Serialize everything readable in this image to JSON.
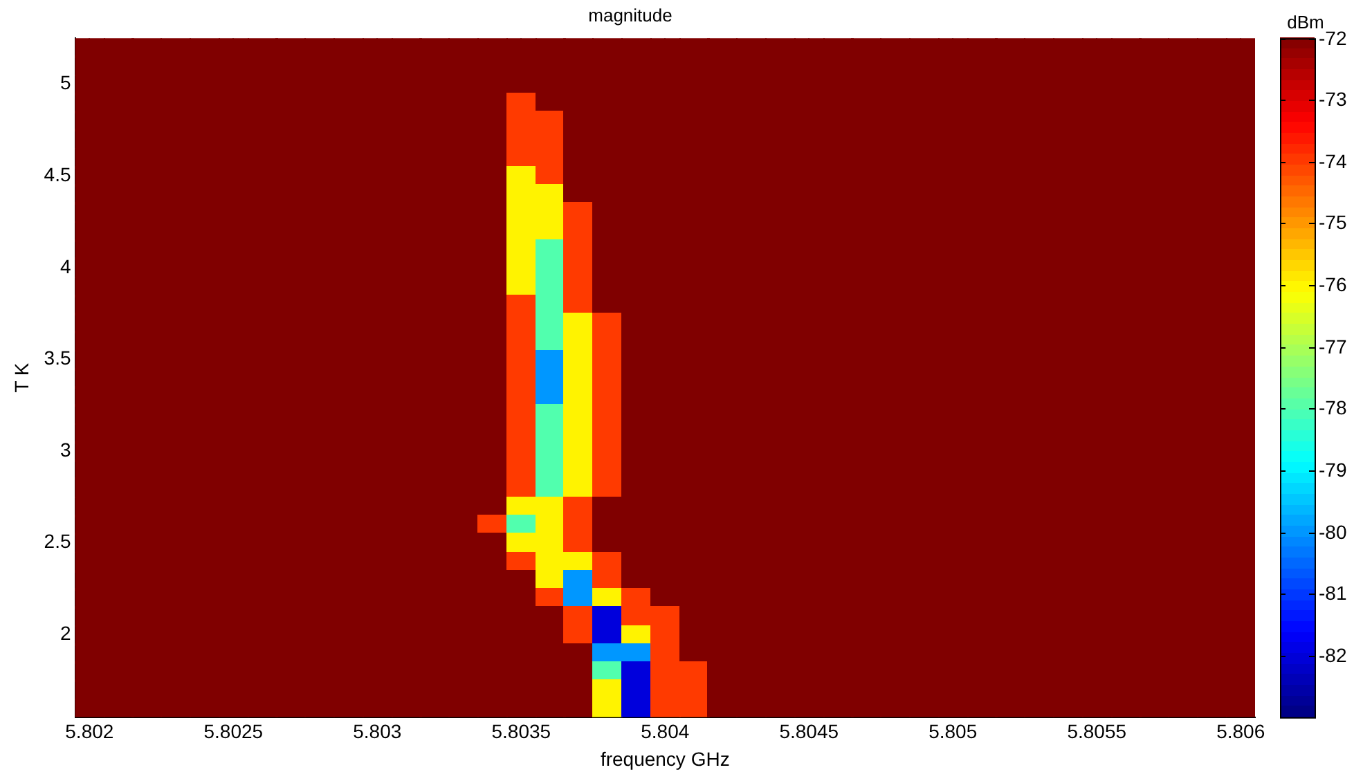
{
  "chart_data": {
    "type": "heatmap",
    "title": "magnitude",
    "xlabel": "frequency GHz",
    "ylabel": "T K",
    "clabel": "dBm",
    "categories": [
      "5.802",
      null,
      null,
      null,
      null,
      "5.8025",
      null,
      null,
      null,
      null,
      "5.803",
      null,
      null,
      null,
      null,
      "5.8035",
      null,
      null,
      null,
      null,
      "5.804",
      null,
      null,
      null,
      null,
      "5.8045",
      null,
      null,
      null,
      null,
      "5.805",
      null,
      null,
      null,
      null,
      "5.8055",
      null,
      null,
      null,
      null,
      "5.806"
    ],
    "y_categories": [
      null,
      null,
      "5",
      null,
      null,
      null,
      null,
      "4.5",
      null,
      null,
      null,
      null,
      "4",
      null,
      null,
      null,
      null,
      "3.5",
      null,
      null,
      null,
      null,
      "3",
      null,
      null,
      null,
      null,
      "2.5",
      null,
      null,
      null,
      null,
      "2",
      null,
      null,
      null,
      null
    ],
    "cells": [
      [
        -72,
        -72,
        -72,
        -72,
        -72,
        -72,
        -72,
        -72,
        -72,
        -72,
        -72,
        -72,
        -72,
        -72,
        -72,
        -72,
        -72,
        -72,
        -72,
        -72,
        -72,
        -72,
        -72,
        -72,
        -72,
        -72,
        -72,
        -72,
        -72,
        -72,
        -72,
        -72,
        -72,
        -72,
        -72,
        -72,
        -72,
        -72,
        -72,
        -72,
        -72
      ],
      [
        -72,
        -72,
        -72,
        -72,
        -72,
        -72,
        -72,
        -72,
        -72,
        -72,
        -72,
        -72,
        -72,
        -72,
        -72,
        -72,
        -72,
        -72,
        -72,
        -72,
        -72,
        -72,
        -72,
        -72,
        -72,
        -72,
        -72,
        -72,
        -72,
        -72,
        -72,
        -72,
        -72,
        -72,
        -72,
        -72,
        -72,
        -72,
        -72,
        -72,
        -72
      ],
      [
        -72,
        -72,
        -72,
        -72,
        -72,
        -72,
        -72,
        -72,
        -72,
        -72,
        -72,
        -72,
        -72,
        -72,
        -72,
        -72,
        -72,
        -72,
        -72,
        -72,
        -72,
        -72,
        -72,
        -72,
        -72,
        -72,
        -72,
        -72,
        -72,
        -72,
        -72,
        -72,
        -72,
        -72,
        -72,
        -72,
        -72,
        -72,
        -72,
        -72,
        -72
      ],
      [
        -72,
        -72,
        -72,
        -72,
        -72,
        -72,
        -72,
        -72,
        -72,
        -72,
        -72,
        -72,
        -72,
        -72,
        -72,
        -74,
        -72,
        -72,
        -72,
        -72,
        -72,
        -72,
        -72,
        -72,
        -72,
        -72,
        -72,
        -72,
        -72,
        -72,
        -72,
        -72,
        -72,
        -72,
        -72,
        -72,
        -72,
        -72,
        -72,
        -72,
        -72
      ],
      [
        -72,
        -72,
        -72,
        -72,
        -72,
        -72,
        -72,
        -72,
        -72,
        -72,
        -72,
        -72,
        -72,
        -72,
        -72,
        -74,
        -74,
        -72,
        -72,
        -72,
        -72,
        -72,
        -72,
        -72,
        -72,
        -72,
        -72,
        -72,
        -72,
        -72,
        -72,
        -72,
        -72,
        -72,
        -72,
        -72,
        -72,
        -72,
        -72,
        -72,
        -72
      ],
      [
        -72,
        -72,
        -72,
        -72,
        -72,
        -72,
        -72,
        -72,
        -72,
        -72,
        -72,
        -72,
        -72,
        -72,
        -72,
        -74,
        -74,
        -72,
        -72,
        -72,
        -72,
        -72,
        -72,
        -72,
        -72,
        -72,
        -72,
        -72,
        -72,
        -72,
        -72,
        -72,
        -72,
        -72,
        -72,
        -72,
        -72,
        -72,
        -72,
        -72,
        -72
      ],
      [
        -72,
        -72,
        -72,
        -72,
        -72,
        -72,
        -72,
        -72,
        -72,
        -72,
        -72,
        -72,
        -72,
        -72,
        -72,
        -74,
        -74,
        -72,
        -72,
        -72,
        -72,
        -72,
        -72,
        -72,
        -72,
        -72,
        -72,
        -72,
        -72,
        -72,
        -72,
        -72,
        -72,
        -72,
        -72,
        -72,
        -72,
        -72,
        -72,
        -72,
        -72
      ],
      [
        -72,
        -72,
        -72,
        -72,
        -72,
        -72,
        -72,
        -72,
        -72,
        -72,
        -72,
        -72,
        -72,
        -72,
        -72,
        -76,
        -74,
        -72,
        -72,
        -72,
        -72,
        -72,
        -72,
        -72,
        -72,
        -72,
        -72,
        -72,
        -72,
        -72,
        -72,
        -72,
        -72,
        -72,
        -72,
        -72,
        -72,
        -72,
        -72,
        -72,
        -72
      ],
      [
        -72,
        -72,
        -72,
        -72,
        -72,
        -72,
        -72,
        -72,
        -72,
        -72,
        -72,
        -72,
        -72,
        -72,
        -72,
        -76,
        -76,
        -72,
        -72,
        -72,
        -72,
        -72,
        -72,
        -72,
        -72,
        -72,
        -72,
        -72,
        -72,
        -72,
        -72,
        -72,
        -72,
        -72,
        -72,
        -72,
        -72,
        -72,
        -72,
        -72,
        -72
      ],
      [
        -72,
        -72,
        -72,
        -72,
        -72,
        -72,
        -72,
        -72,
        -72,
        -72,
        -72,
        -72,
        -72,
        -72,
        -72,
        -76,
        -76,
        -74,
        -72,
        -72,
        -72,
        -72,
        -72,
        -72,
        -72,
        -72,
        -72,
        -72,
        -72,
        -72,
        -72,
        -72,
        -72,
        -72,
        -72,
        -72,
        -72,
        -72,
        -72,
        -72,
        -72
      ],
      [
        -72,
        -72,
        -72,
        -72,
        -72,
        -72,
        -72,
        -72,
        -72,
        -72,
        -72,
        -72,
        -72,
        -72,
        -72,
        -76,
        -76,
        -74,
        -72,
        -72,
        -72,
        -72,
        -72,
        -72,
        -72,
        -72,
        -72,
        -72,
        -72,
        -72,
        -72,
        -72,
        -72,
        -72,
        -72,
        -72,
        -72,
        -72,
        -72,
        -72,
        -72
      ],
      [
        -72,
        -72,
        -72,
        -72,
        -72,
        -72,
        -72,
        -72,
        -72,
        -72,
        -72,
        -72,
        -72,
        -72,
        -72,
        -76,
        -78,
        -74,
        -72,
        -72,
        -72,
        -72,
        -72,
        -72,
        -72,
        -72,
        -72,
        -72,
        -72,
        -72,
        -72,
        -72,
        -72,
        -72,
        -72,
        -72,
        -72,
        -72,
        -72,
        -72,
        -72
      ],
      [
        -72,
        -72,
        -72,
        -72,
        -72,
        -72,
        -72,
        -72,
        -72,
        -72,
        -72,
        -72,
        -72,
        -72,
        -72,
        -76,
        -78,
        -74,
        -72,
        -72,
        -72,
        -72,
        -72,
        -72,
        -72,
        -72,
        -72,
        -72,
        -72,
        -72,
        -72,
        -72,
        -72,
        -72,
        -72,
        -72,
        -72,
        -72,
        -72,
        -72,
        -72
      ],
      [
        -72,
        -72,
        -72,
        -72,
        -72,
        -72,
        -72,
        -72,
        -72,
        -72,
        -72,
        -72,
        -72,
        -72,
        -72,
        -76,
        -78,
        -74,
        -72,
        -72,
        -72,
        -72,
        -72,
        -72,
        -72,
        -72,
        -72,
        -72,
        -72,
        -72,
        -72,
        -72,
        -72,
        -72,
        -72,
        -72,
        -72,
        -72,
        -72,
        -72,
        -72
      ],
      [
        -72,
        -72,
        -72,
        -72,
        -72,
        -72,
        -72,
        -72,
        -72,
        -72,
        -72,
        -72,
        -72,
        -72,
        -72,
        -74,
        -78,
        -74,
        -72,
        -72,
        -72,
        -72,
        -72,
        -72,
        -72,
        -72,
        -72,
        -72,
        -72,
        -72,
        -72,
        -72,
        -72,
        -72,
        -72,
        -72,
        -72,
        -72,
        -72,
        -72,
        -72
      ],
      [
        -72,
        -72,
        -72,
        -72,
        -72,
        -72,
        -72,
        -72,
        -72,
        -72,
        -72,
        -72,
        -72,
        -72,
        -72,
        -74,
        -78,
        -76,
        -74,
        -72,
        -72,
        -72,
        -72,
        -72,
        -72,
        -72,
        -72,
        -72,
        -72,
        -72,
        -72,
        -72,
        -72,
        -72,
        -72,
        -72,
        -72,
        -72,
        -72,
        -72,
        -72
      ],
      [
        -72,
        -72,
        -72,
        -72,
        -72,
        -72,
        -72,
        -72,
        -72,
        -72,
        -72,
        -72,
        -72,
        -72,
        -72,
        -74,
        -78,
        -76,
        -74,
        -72,
        -72,
        -72,
        -72,
        -72,
        -72,
        -72,
        -72,
        -72,
        -72,
        -72,
        -72,
        -72,
        -72,
        -72,
        -72,
        -72,
        -72,
        -72,
        -72,
        -72,
        -72
      ],
      [
        -72,
        -72,
        -72,
        -72,
        -72,
        -72,
        -72,
        -72,
        -72,
        -72,
        -72,
        -72,
        -72,
        -72,
        -72,
        -74,
        -80,
        -76,
        -74,
        -72,
        -72,
        -72,
        -72,
        -72,
        -72,
        -72,
        -72,
        -72,
        -72,
        -72,
        -72,
        -72,
        -72,
        -72,
        -72,
        -72,
        -72,
        -72,
        -72,
        -72,
        -72
      ],
      [
        -72,
        -72,
        -72,
        -72,
        -72,
        -72,
        -72,
        -72,
        -72,
        -72,
        -72,
        -72,
        -72,
        -72,
        -72,
        -74,
        -80,
        -76,
        -74,
        -72,
        -72,
        -72,
        -72,
        -72,
        -72,
        -72,
        -72,
        -72,
        -72,
        -72,
        -72,
        -72,
        -72,
        -72,
        -72,
        -72,
        -72,
        -72,
        -72,
        -72,
        -72
      ],
      [
        -72,
        -72,
        -72,
        -72,
        -72,
        -72,
        -72,
        -72,
        -72,
        -72,
        -72,
        -72,
        -72,
        -72,
        -72,
        -74,
        -80,
        -76,
        -74,
        -72,
        -72,
        -72,
        -72,
        -72,
        -72,
        -72,
        -72,
        -72,
        -72,
        -72,
        -72,
        -72,
        -72,
        -72,
        -72,
        -72,
        -72,
        -72,
        -72,
        -72,
        -72
      ],
      [
        -72,
        -72,
        -72,
        -72,
        -72,
        -72,
        -72,
        -72,
        -72,
        -72,
        -72,
        -72,
        -72,
        -72,
        -72,
        -74,
        -78,
        -76,
        -74,
        -72,
        -72,
        -72,
        -72,
        -72,
        -72,
        -72,
        -72,
        -72,
        -72,
        -72,
        -72,
        -72,
        -72,
        -72,
        -72,
        -72,
        -72,
        -72,
        -72,
        -72,
        -72
      ],
      [
        -72,
        -72,
        -72,
        -72,
        -72,
        -72,
        -72,
        -72,
        -72,
        -72,
        -72,
        -72,
        -72,
        -72,
        -72,
        -74,
        -78,
        -76,
        -74,
        -72,
        -72,
        -72,
        -72,
        -72,
        -72,
        -72,
        -72,
        -72,
        -72,
        -72,
        -72,
        -72,
        -72,
        -72,
        -72,
        -72,
        -72,
        -72,
        -72,
        -72,
        -72
      ],
      [
        -72,
        -72,
        -72,
        -72,
        -72,
        -72,
        -72,
        -72,
        -72,
        -72,
        -72,
        -72,
        -72,
        -72,
        -72,
        -74,
        -78,
        -76,
        -74,
        -72,
        -72,
        -72,
        -72,
        -72,
        -72,
        -72,
        -72,
        -72,
        -72,
        -72,
        -72,
        -72,
        -72,
        -72,
        -72,
        -72,
        -72,
        -72,
        -72,
        -72,
        -72
      ],
      [
        -72,
        -72,
        -72,
        -72,
        -72,
        -72,
        -72,
        -72,
        -72,
        -72,
        -72,
        -72,
        -72,
        -72,
        -72,
        -74,
        -78,
        -76,
        -74,
        -72,
        -72,
        -72,
        -72,
        -72,
        -72,
        -72,
        -72,
        -72,
        -72,
        -72,
        -72,
        -72,
        -72,
        -72,
        -72,
        -72,
        -72,
        -72,
        -72,
        -72,
        -72
      ],
      [
        -72,
        -72,
        -72,
        -72,
        -72,
        -72,
        -72,
        -72,
        -72,
        -72,
        -72,
        -72,
        -72,
        -72,
        -72,
        -74,
        -78,
        -76,
        -74,
        -72,
        -72,
        -72,
        -72,
        -72,
        -72,
        -72,
        -72,
        -72,
        -72,
        -72,
        -72,
        -72,
        -72,
        -72,
        -72,
        -72,
        -72,
        -72,
        -72,
        -72,
        -72
      ],
      [
        -72,
        -72,
        -72,
        -72,
        -72,
        -72,
        -72,
        -72,
        -72,
        -72,
        -72,
        -72,
        -72,
        -72,
        -72,
        -76,
        -76,
        -74,
        -72,
        -72,
        -72,
        -72,
        -72,
        -72,
        -72,
        -72,
        -72,
        -72,
        -72,
        -72,
        -72,
        -72,
        -72,
        -72,
        -72,
        -72,
        -72,
        -72,
        -72,
        -72,
        -72
      ],
      [
        -72,
        -72,
        -72,
        -72,
        -72,
        -72,
        -72,
        -72,
        -72,
        -72,
        -72,
        -72,
        -72,
        -72,
        -74,
        -78,
        -76,
        -74,
        -72,
        -72,
        -72,
        -72,
        -72,
        -72,
        -72,
        -72,
        -72,
        -72,
        -72,
        -72,
        -72,
        -72,
        -72,
        -72,
        -72,
        -72,
        -72,
        -72,
        -72,
        -72,
        -72
      ],
      [
        -72,
        -72,
        -72,
        -72,
        -72,
        -72,
        -72,
        -72,
        -72,
        -72,
        -72,
        -72,
        -72,
        -72,
        -72,
        -76,
        -76,
        -74,
        -72,
        -72,
        -72,
        -72,
        -72,
        -72,
        -72,
        -72,
        -72,
        -72,
        -72,
        -72,
        -72,
        -72,
        -72,
        -72,
        -72,
        -72,
        -72,
        -72,
        -72,
        -72,
        -72
      ],
      [
        -72,
        -72,
        -72,
        -72,
        -72,
        -72,
        -72,
        -72,
        -72,
        -72,
        -72,
        -72,
        -72,
        -72,
        -72,
        -74,
        -76,
        -76,
        -74,
        -72,
        -72,
        -72,
        -72,
        -72,
        -72,
        -72,
        -72,
        -72,
        -72,
        -72,
        -72,
        -72,
        -72,
        -72,
        -72,
        -72,
        -72,
        -72,
        -72,
        -72,
        -72
      ],
      [
        -72,
        -72,
        -72,
        -72,
        -72,
        -72,
        -72,
        -72,
        -72,
        -72,
        -72,
        -72,
        -72,
        -72,
        -72,
        -72,
        -76,
        -80,
        -74,
        -72,
        -72,
        -72,
        -72,
        -72,
        -72,
        -72,
        -72,
        -72,
        -72,
        -72,
        -72,
        -72,
        -72,
        -72,
        -72,
        -72,
        -72,
        -72,
        -72,
        -72,
        -72
      ],
      [
        -72,
        -72,
        -72,
        -72,
        -72,
        -72,
        -72,
        -72,
        -72,
        -72,
        -72,
        -72,
        -72,
        -72,
        -72,
        -72,
        -74,
        -80,
        -76,
        -74,
        -72,
        -72,
        -72,
        -72,
        -72,
        -72,
        -72,
        -72,
        -72,
        -72,
        -72,
        -72,
        -72,
        -72,
        -72,
        -72,
        -72,
        -72,
        -72,
        -72,
        -72
      ],
      [
        -72,
        -72,
        -72,
        -72,
        -72,
        -72,
        -72,
        -72,
        -72,
        -72,
        -72,
        -72,
        -72,
        -72,
        -72,
        -72,
        -72,
        -74,
        -82,
        -74,
        -74,
        -72,
        -72,
        -72,
        -72,
        -72,
        -72,
        -72,
        -72,
        -72,
        -72,
        -72,
        -72,
        -72,
        -72,
        -72,
        -72,
        -72,
        -72,
        -72,
        -72
      ],
      [
        -72,
        -72,
        -72,
        -72,
        -72,
        -72,
        -72,
        -72,
        -72,
        -72,
        -72,
        -72,
        -72,
        -72,
        -72,
        -72,
        -72,
        -74,
        -82,
        -76,
        -74,
        -72,
        -72,
        -72,
        -72,
        -72,
        -72,
        -72,
        -72,
        -72,
        -72,
        -72,
        -72,
        -72,
        -72,
        -72,
        -72,
        -72,
        -72,
        -72,
        -72
      ],
      [
        -72,
        -72,
        -72,
        -72,
        -72,
        -72,
        -72,
        -72,
        -72,
        -72,
        -72,
        -72,
        -72,
        -72,
        -72,
        -72,
        -72,
        -72,
        -80,
        -80,
        -74,
        -72,
        -72,
        -72,
        -72,
        -72,
        -72,
        -72,
        -72,
        -72,
        -72,
        -72,
        -72,
        -72,
        -72,
        -72,
        -72,
        -72,
        -72,
        -72,
        -72
      ],
      [
        -72,
        -72,
        -72,
        -72,
        -72,
        -72,
        -72,
        -72,
        -72,
        -72,
        -72,
        -72,
        -72,
        -72,
        -72,
        -72,
        -72,
        -72,
        -78,
        -82,
        -74,
        -74,
        -72,
        -72,
        -72,
        -72,
        -72,
        -72,
        -72,
        -72,
        -72,
        -72,
        -72,
        -72,
        -72,
        -72,
        -72,
        -72,
        -72,
        -72,
        -72
      ],
      [
        -72,
        -72,
        -72,
        -72,
        -72,
        -72,
        -72,
        -72,
        -72,
        -72,
        -72,
        -72,
        -72,
        -72,
        -72,
        -72,
        -72,
        -72,
        -76,
        -82,
        -74,
        -74,
        -72,
        -72,
        -72,
        -72,
        -72,
        -72,
        -72,
        -72,
        -72,
        -72,
        -72,
        -72,
        -72,
        -72,
        -72,
        -72,
        -72,
        -72,
        -72
      ],
      [
        -72,
        -72,
        -72,
        -72,
        -72,
        -72,
        -72,
        -72,
        -72,
        -72,
        -72,
        -72,
        -72,
        -72,
        -72,
        -72,
        -72,
        -72,
        -76,
        -82,
        -74,
        -74,
        -72,
        -72,
        -72,
        -72,
        -72,
        -72,
        -72,
        -72,
        -72,
        -72,
        -72,
        -72,
        -72,
        -72,
        -72,
        -72,
        -72,
        -72,
        -72
      ]
    ],
    "clim": [
      -83,
      -72
    ],
    "cticks": [
      -72,
      -73,
      -74,
      -75,
      -76,
      -77,
      -78,
      -79,
      -80,
      -81,
      -82
    ],
    "grid": true
  }
}
